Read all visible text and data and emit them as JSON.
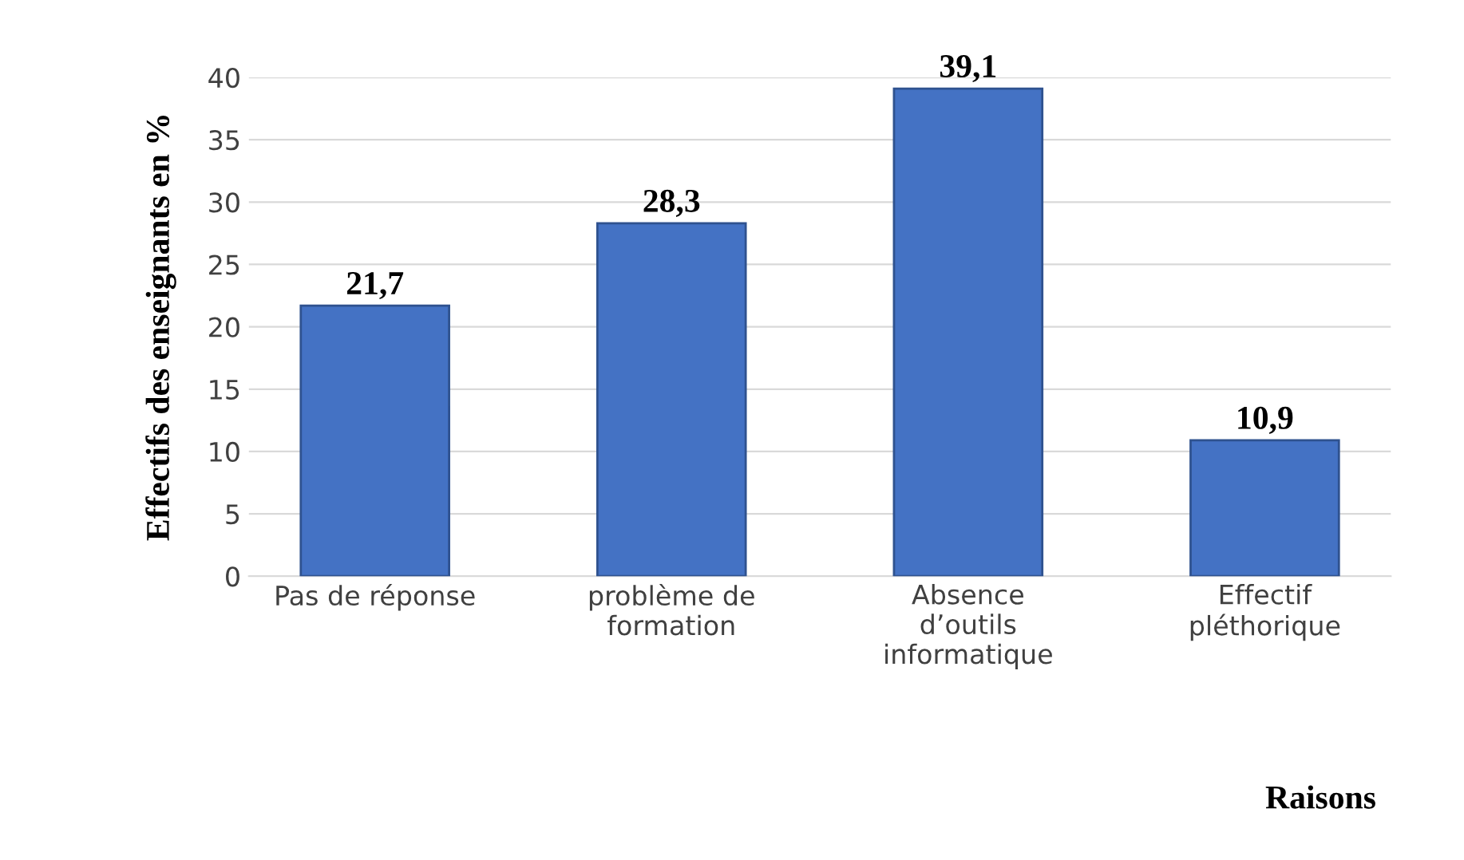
{
  "chart_data": {
    "type": "bar",
    "categories": [
      "Pas de réponse",
      "problème de\nformation",
      "Absence\nd’outils\ninformatique",
      "Effectif\npléthorique"
    ],
    "values": [
      21.7,
      28.3,
      39.1,
      10.9
    ],
    "color": "#4472c4",
    "value_labels": [
      "21,7",
      "28,3",
      "39,1",
      "10,9"
    ],
    "ylabel": "Effectifs des enseignants en %",
    "xlabel": "Raisons",
    "ylim": [
      0,
      40
    ],
    "yticks": [
      0,
      5,
      10,
      15,
      20,
      25,
      30,
      35,
      40
    ],
    "grid": "y",
    "legend": false
  }
}
